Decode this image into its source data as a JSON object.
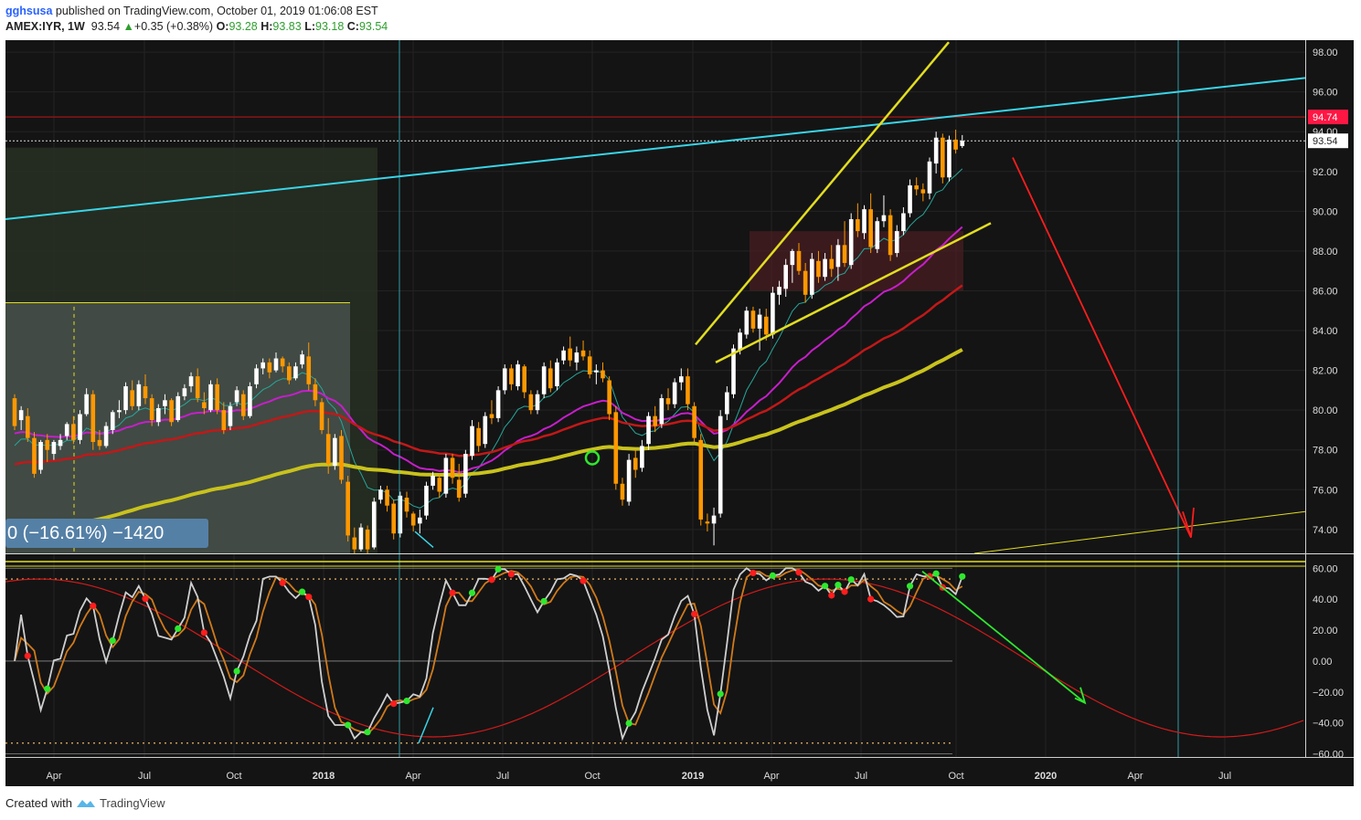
{
  "header": {
    "username": "gghsusa",
    "published_text": "published on TradingView.com, October 01, 2019 01:06:08 EST",
    "symbol": "AMEX:IYR, 1W",
    "last": "93.54",
    "change": "+0.35 (+0.38%)",
    "o_label": "O:",
    "o_value": "93.28",
    "h_label": "H:",
    "h_value": "93.83",
    "l_label": "L:",
    "l_value": "93.18",
    "c_label": "C:",
    "c_value": "93.54"
  },
  "footer": {
    "created_with": "Created with",
    "brand": "TradingView"
  },
  "colors": {
    "background": "#141414",
    "up_candle": "#ffffff",
    "down_candle": "#ff9800",
    "ema_fast": "#26a69a",
    "ema_mid": "#c71ecb",
    "ema_slow": "#c21818",
    "ema_long": "#c9c21d",
    "trend_cyan": "#39d5e8",
    "wedge_yellow": "#e2dd20",
    "price_tag": "#ff1744"
  },
  "chart_data": [
    {
      "type": "candlestick",
      "title": "AMEX:IYR, 1W",
      "x_ticks": [
        "Apr",
        "Jul",
        "Oct",
        "2018",
        "Apr",
        "Jul",
        "Oct",
        "2019",
        "Apr",
        "Jul",
        "Oct",
        "2020",
        "Apr",
        "Jul"
      ],
      "y_ticks": [
        "74.00",
        "76.00",
        "78.00",
        "80.00",
        "82.00",
        "84.00",
        "86.00",
        "88.00",
        "90.00",
        "92.00",
        "94.00",
        "96.00",
        "98.00"
      ],
      "ylim": [
        72.8,
        98.6
      ],
      "price_labels": {
        "resistance": "94.74",
        "last": "93.54"
      },
      "measure_label": "0 (−16.61%) −1420",
      "candles": [
        [
          80.6,
          80.8,
          79.0,
          79.2
        ],
        [
          79.5,
          80.2,
          79.0,
          80.0
        ],
        [
          79.7,
          80.1,
          78.4,
          78.6
        ],
        [
          78.6,
          78.9,
          76.6,
          76.8
        ],
        [
          77.0,
          78.5,
          76.8,
          78.4
        ],
        [
          78.5,
          78.8,
          77.4,
          78.0
        ],
        [
          77.8,
          78.5,
          77.5,
          78.4
        ],
        [
          78.2,
          78.8,
          78.0,
          78.5
        ],
        [
          78.7,
          79.4,
          78.5,
          79.3
        ],
        [
          79.3,
          79.7,
          78.3,
          78.5
        ],
        [
          78.5,
          80.0,
          78.3,
          79.8
        ],
        [
          79.8,
          81.1,
          79.7,
          80.8
        ],
        [
          80.8,
          81.0,
          78.0,
          78.4
        ],
        [
          78.5,
          79.0,
          78.0,
          78.2
        ],
        [
          78.2,
          79.4,
          78.1,
          79.2
        ],
        [
          79.0,
          80.0,
          78.8,
          79.9
        ],
        [
          79.9,
          80.5,
          79.6,
          80.0
        ],
        [
          80.0,
          81.4,
          79.8,
          81.2
        ],
        [
          81.0,
          81.5,
          80.0,
          80.2
        ],
        [
          80.2,
          81.5,
          80.0,
          81.3
        ],
        [
          81.2,
          81.8,
          80.3,
          80.6
        ],
        [
          80.6,
          80.8,
          79.2,
          79.5
        ],
        [
          79.4,
          80.3,
          79.2,
          80.1
        ],
        [
          80.2,
          80.8,
          79.8,
          80.5
        ],
        [
          80.5,
          80.6,
          79.2,
          79.4
        ],
        [
          79.5,
          80.9,
          79.4,
          80.7
        ],
        [
          80.7,
          81.3,
          80.5,
          81.1
        ],
        [
          81.2,
          81.9,
          80.9,
          81.7
        ],
        [
          81.7,
          82.1,
          80.4,
          80.6
        ],
        [
          80.4,
          80.9,
          79.8,
          80.1
        ],
        [
          80.0,
          81.5,
          79.9,
          81.3
        ],
        [
          81.3,
          81.6,
          79.8,
          80.0
        ],
        [
          80.0,
          80.4,
          78.8,
          79.0
        ],
        [
          79.2,
          80.4,
          79.0,
          80.2
        ],
        [
          80.4,
          81.2,
          80.2,
          81.0
        ],
        [
          80.8,
          81.0,
          79.5,
          79.7
        ],
        [
          79.7,
          81.4,
          79.6,
          81.2
        ],
        [
          81.3,
          82.3,
          81.1,
          82.1
        ],
        [
          82.1,
          82.6,
          81.8,
          82.4
        ],
        [
          82.4,
          82.6,
          81.6,
          81.9
        ],
        [
          82.0,
          82.9,
          81.9,
          82.6
        ],
        [
          82.6,
          82.7,
          81.9,
          82.2
        ],
        [
          82.2,
          82.4,
          81.3,
          81.5
        ],
        [
          81.6,
          82.4,
          81.5,
          82.2
        ],
        [
          82.3,
          83.0,
          82.1,
          82.8
        ],
        [
          82.7,
          83.4,
          81.0,
          81.3
        ],
        [
          81.3,
          81.6,
          80.2,
          80.5
        ],
        [
          80.4,
          80.6,
          78.8,
          79.0
        ],
        [
          78.8,
          79.6,
          76.8,
          77.3
        ],
        [
          77.2,
          78.8,
          77.0,
          78.6
        ],
        [
          78.7,
          79.0,
          76.3,
          76.5
        ],
        [
          76.4,
          76.7,
          73.4,
          73.7
        ],
        [
          73.6,
          74.1,
          72.8,
          73.0
        ],
        [
          73.0,
          74.3,
          72.9,
          74.1
        ],
        [
          74.0,
          74.2,
          72.8,
          73.0
        ],
        [
          73.1,
          75.6,
          73.0,
          75.4
        ],
        [
          75.5,
          76.2,
          75.3,
          76.0
        ],
        [
          76.0,
          76.2,
          74.9,
          75.2
        ],
        [
          75.3,
          75.5,
          73.5,
          73.8
        ],
        [
          73.8,
          75.9,
          73.6,
          75.7
        ],
        [
          75.6,
          75.9,
          74.6,
          74.9
        ],
        [
          74.8,
          74.9,
          73.9,
          74.2
        ],
        [
          74.3,
          75.0,
          73.8,
          74.6
        ],
        [
          74.7,
          76.4,
          74.5,
          76.2
        ],
        [
          76.2,
          76.9,
          76.0,
          76.7
        ],
        [
          76.6,
          76.8,
          75.6,
          75.9
        ],
        [
          75.8,
          77.8,
          75.6,
          77.6
        ],
        [
          77.6,
          77.8,
          76.3,
          76.6
        ],
        [
          76.5,
          77.3,
          75.4,
          75.6
        ],
        [
          75.8,
          78.0,
          75.6,
          77.8
        ],
        [
          77.7,
          79.5,
          77.5,
          79.2
        ],
        [
          79.1,
          79.4,
          77.9,
          78.2
        ],
        [
          78.3,
          79.9,
          78.1,
          79.7
        ],
        [
          79.8,
          80.5,
          79.3,
          79.6
        ],
        [
          79.6,
          81.2,
          79.4,
          81.0
        ],
        [
          81.0,
          82.3,
          80.8,
          82.1
        ],
        [
          82.1,
          82.3,
          81.0,
          81.3
        ],
        [
          81.2,
          82.5,
          81.0,
          82.3
        ],
        [
          82.2,
          82.3,
          80.6,
          80.9
        ],
        [
          80.8,
          81.0,
          79.8,
          80.0
        ],
        [
          80.0,
          81.0,
          79.8,
          80.8
        ],
        [
          80.8,
          82.4,
          80.6,
          82.2
        ],
        [
          82.1,
          82.5,
          80.9,
          81.1
        ],
        [
          81.2,
          82.6,
          81.0,
          82.4
        ],
        [
          82.5,
          83.2,
          82.3,
          83.0
        ],
        [
          83.1,
          83.7,
          82.2,
          82.5
        ],
        [
          82.4,
          83.2,
          82.0,
          82.9
        ],
        [
          83.0,
          83.5,
          82.5,
          82.7
        ],
        [
          82.7,
          83.0,
          81.6,
          81.8
        ],
        [
          81.9,
          82.3,
          81.3,
          82.0
        ],
        [
          82.0,
          82.4,
          81.4,
          81.6
        ],
        [
          81.5,
          81.7,
          79.5,
          79.8
        ],
        [
          79.9,
          80.2,
          76.0,
          76.3
        ],
        [
          76.3,
          76.6,
          75.2,
          75.5
        ],
        [
          75.4,
          77.8,
          75.2,
          77.5
        ],
        [
          77.6,
          78.0,
          76.6,
          77.0
        ],
        [
          77.1,
          78.5,
          76.9,
          78.2
        ],
        [
          78.3,
          79.9,
          78.0,
          79.7
        ],
        [
          79.7,
          80.2,
          78.9,
          79.2
        ],
        [
          79.3,
          80.8,
          79.1,
          80.6
        ],
        [
          80.6,
          81.1,
          80.0,
          80.3
        ],
        [
          80.3,
          81.6,
          80.1,
          81.4
        ],
        [
          81.4,
          82.1,
          81.0,
          81.7
        ],
        [
          81.7,
          82.1,
          80.0,
          80.3
        ],
        [
          80.2,
          80.4,
          78.4,
          78.6
        ],
        [
          78.5,
          78.8,
          74.2,
          74.5
        ],
        [
          74.4,
          74.8,
          73.9,
          74.3
        ],
        [
          74.3,
          75.1,
          73.2,
          74.7
        ],
        [
          74.8,
          80.0,
          74.6,
          79.7
        ],
        [
          79.8,
          81.2,
          79.5,
          80.9
        ],
        [
          80.8,
          83.3,
          80.6,
          83.1
        ],
        [
          83.0,
          84.1,
          82.8,
          83.9
        ],
        [
          83.8,
          85.2,
          83.6,
          85.0
        ],
        [
          85.0,
          85.2,
          83.9,
          84.1
        ],
        [
          84.1,
          85.1,
          83.0,
          84.8
        ],
        [
          84.7,
          85.1,
          83.5,
          83.8
        ],
        [
          83.8,
          86.2,
          83.6,
          85.9
        ],
        [
          85.8,
          86.5,
          85.3,
          86.2
        ],
        [
          86.1,
          87.6,
          85.7,
          87.3
        ],
        [
          87.3,
          88.1,
          86.4,
          88.0
        ],
        [
          88.0,
          88.4,
          86.8,
          87.0
        ],
        [
          87.0,
          87.4,
          85.4,
          85.8
        ],
        [
          85.8,
          87.9,
          85.6,
          87.6
        ],
        [
          87.5,
          88.0,
          86.4,
          86.7
        ],
        [
          86.7,
          87.9,
          86.5,
          87.6
        ],
        [
          87.6,
          88.3,
          86.7,
          87.1
        ],
        [
          87.2,
          88.6,
          86.5,
          88.3
        ],
        [
          88.3,
          89.5,
          87.2,
          87.4
        ],
        [
          87.3,
          89.9,
          87.1,
          89.6
        ],
        [
          89.6,
          90.4,
          88.7,
          89.0
        ],
        [
          88.9,
          90.3,
          88.6,
          90.1
        ],
        [
          90.1,
          90.9,
          87.9,
          88.2
        ],
        [
          88.1,
          89.7,
          87.9,
          89.5
        ],
        [
          89.5,
          90.8,
          89.2,
          89.8
        ],
        [
          89.8,
          90.1,
          87.5,
          87.8
        ],
        [
          87.9,
          89.3,
          87.7,
          89.0
        ],
        [
          89.0,
          90.2,
          88.8,
          89.9
        ],
        [
          89.9,
          91.6,
          89.7,
          91.3
        ],
        [
          91.3,
          91.7,
          90.8,
          91.1
        ],
        [
          91.1,
          91.4,
          90.5,
          90.9
        ],
        [
          90.9,
          92.7,
          90.6,
          92.5
        ],
        [
          92.4,
          94.0,
          91.9,
          93.7
        ],
        [
          93.7,
          93.9,
          91.4,
          91.7
        ],
        [
          91.7,
          93.8,
          91.5,
          93.6
        ],
        [
          93.6,
          94.1,
          92.9,
          93.1
        ],
        [
          93.28,
          93.83,
          93.18,
          93.54
        ]
      ]
    },
    {
      "type": "line",
      "title": "",
      "y_ticks": [
        "-60.00",
        "-40.00",
        "-20.00",
        "0.00",
        "20.00",
        "40.00",
        "60.00"
      ],
      "ylim": [
        -62,
        69
      ],
      "levels": [
        60,
        53,
        0,
        -53,
        -60
      ]
    }
  ]
}
